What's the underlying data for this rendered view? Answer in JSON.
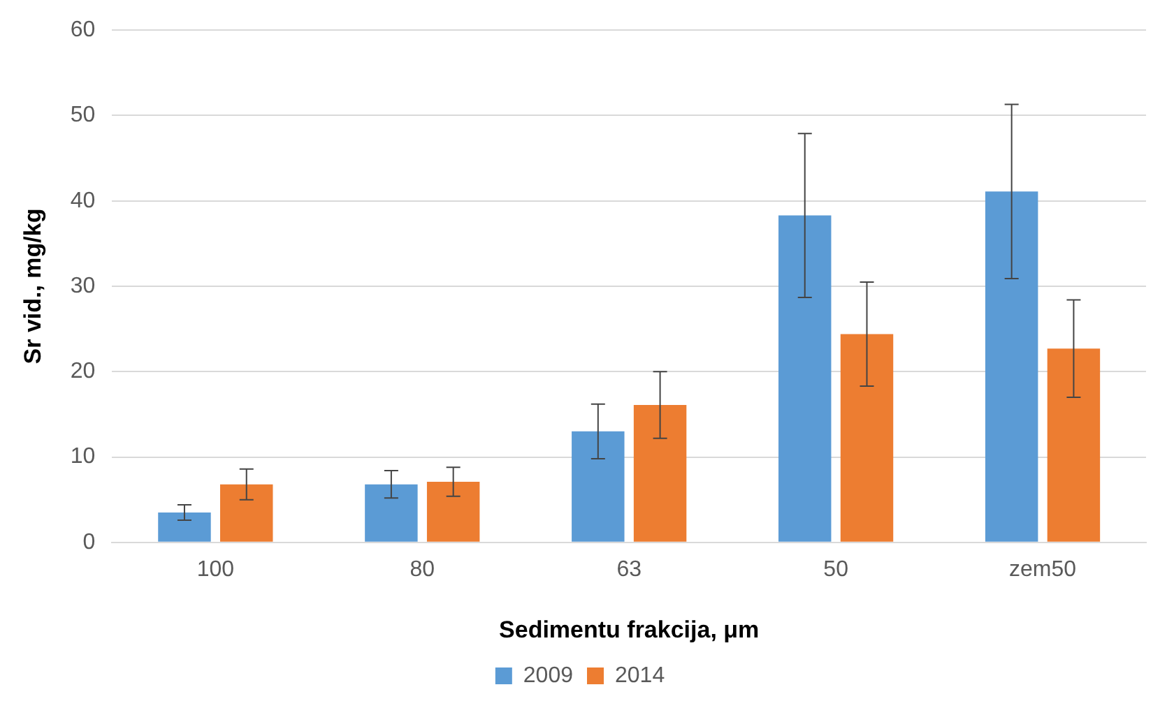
{
  "chart_data": {
    "type": "bar",
    "xlabel": "Sedimentu frakcija, μm",
    "ylabel": "Sr vid., mg/kg",
    "categories": [
      "100",
      "80",
      "63",
      "50",
      "zem50"
    ],
    "series": [
      {
        "name": "2009",
        "color": "#5b9bd5",
        "values": [
          3.5,
          6.8,
          13.0,
          38.3,
          41.1
        ],
        "errors": [
          0.9,
          1.6,
          3.2,
          9.6,
          10.2
        ]
      },
      {
        "name": "2014",
        "color": "#ed7d31",
        "values": [
          6.8,
          7.1,
          16.1,
          24.4,
          22.7
        ],
        "errors": [
          1.8,
          1.7,
          3.9,
          6.1,
          5.7
        ]
      }
    ],
    "ylim": [
      0,
      60
    ],
    "yticks": [
      0,
      10,
      20,
      30,
      40,
      50,
      60
    ],
    "grid": "y",
    "legend": "bottom"
  }
}
